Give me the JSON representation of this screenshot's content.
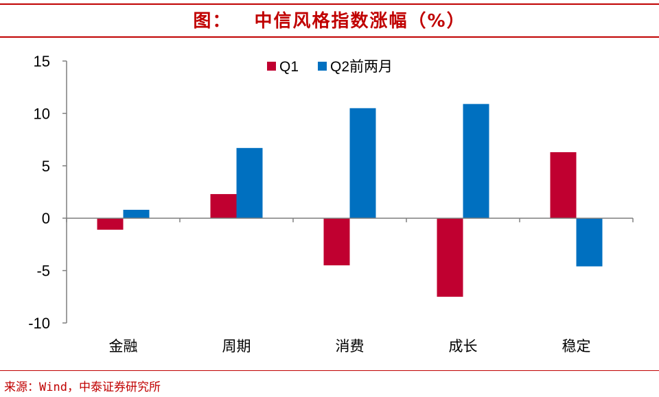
{
  "title": "图：   中信风格指数涨幅（%）",
  "source": "来源：Wind，中泰证券研究所",
  "colors": {
    "accent": "#c00000",
    "series_q1": "#c00030",
    "series_q2": "#0070c0",
    "axis": "#7f7f7f"
  },
  "chart_data": {
    "type": "bar",
    "title": "中信风格指数涨幅（%）",
    "categories": [
      "金融",
      "周期",
      "消费",
      "成长",
      "稳定"
    ],
    "series": [
      {
        "name": "Q1",
        "values": [
          -1.1,
          2.3,
          -4.5,
          -7.5,
          6.3
        ]
      },
      {
        "name": "Q2前两月",
        "values": [
          0.8,
          6.7,
          10.5,
          10.9,
          -4.6
        ]
      }
    ],
    "ylim": [
      -10,
      15
    ],
    "yticks": [
      "15",
      "10",
      "5",
      "0",
      "-5",
      "-10"
    ],
    "grid": false,
    "legend_position": "top-center"
  }
}
